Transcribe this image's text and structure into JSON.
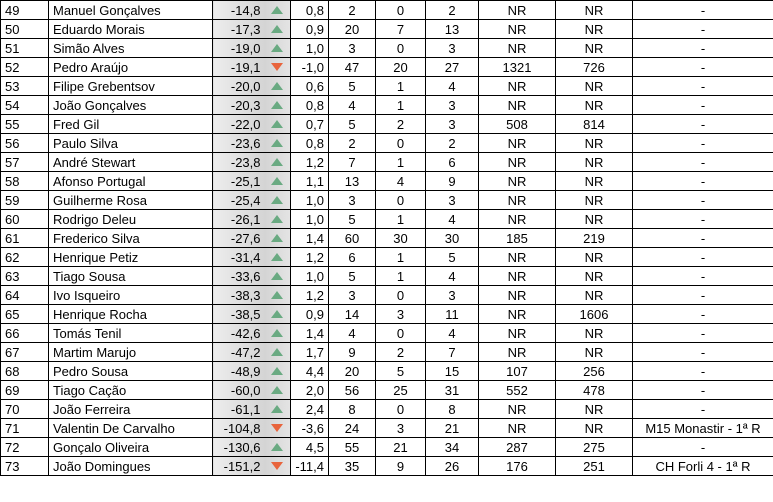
{
  "table": {
    "rows": [
      [
        "49",
        "Manuel Gonçalves",
        "-14,8",
        "0,8",
        "2",
        "0",
        "2",
        "NR",
        "NR",
        "-"
      ],
      [
        "50",
        "Eduardo Morais",
        "-17,3",
        "0,9",
        "20",
        "7",
        "13",
        "NR",
        "NR",
        "-"
      ],
      [
        "51",
        "Simão Alves",
        "-19,0",
        "1,0",
        "3",
        "0",
        "3",
        "NR",
        "NR",
        "-"
      ],
      [
        "52",
        "Pedro Araújo",
        "-19,1",
        "-1,0",
        "47",
        "20",
        "27",
        "1321",
        "726",
        "-"
      ],
      [
        "53",
        "Filipe Grebentsov",
        "-20,0",
        "0,6",
        "5",
        "1",
        "4",
        "NR",
        "NR",
        "-"
      ],
      [
        "54",
        "João Gonçalves",
        "-20,3",
        "0,8",
        "4",
        "1",
        "3",
        "NR",
        "NR",
        "-"
      ],
      [
        "55",
        "Fred Gil",
        "-22,0",
        "0,7",
        "5",
        "2",
        "3",
        "508",
        "814",
        "-"
      ],
      [
        "56",
        "Paulo Silva",
        "-23,6",
        "0,8",
        "2",
        "0",
        "2",
        "NR",
        "NR",
        "-"
      ],
      [
        "57",
        "André Stewart",
        "-23,8",
        "1,2",
        "7",
        "1",
        "6",
        "NR",
        "NR",
        "-"
      ],
      [
        "58",
        "Afonso Portugal",
        "-25,1",
        "1,1",
        "13",
        "4",
        "9",
        "NR",
        "NR",
        "-"
      ],
      [
        "59",
        "Guilherme Rosa",
        "-25,4",
        "1,0",
        "3",
        "0",
        "3",
        "NR",
        "NR",
        "-"
      ],
      [
        "60",
        "Rodrigo Deleu",
        "-26,1",
        "1,0",
        "5",
        "1",
        "4",
        "NR",
        "NR",
        "-"
      ],
      [
        "61",
        "Frederico Silva",
        "-27,6",
        "1,4",
        "60",
        "30",
        "30",
        "185",
        "219",
        "-"
      ],
      [
        "62",
        "Henrique Petiz",
        "-31,4",
        "1,2",
        "6",
        "1",
        "5",
        "NR",
        "NR",
        "-"
      ],
      [
        "63",
        "Tiago Sousa",
        "-33,6",
        "1,0",
        "5",
        "1",
        "4",
        "NR",
        "NR",
        "-"
      ],
      [
        "64",
        "Ivo Isqueiro",
        "-38,3",
        "1,2",
        "3",
        "0",
        "3",
        "NR",
        "NR",
        "-"
      ],
      [
        "65",
        "Henrique Rocha",
        "-38,5",
        "0,9",
        "14",
        "3",
        "11",
        "NR",
        "1606",
        "-"
      ],
      [
        "66",
        "Tomás Tenil",
        "-42,6",
        "1,4",
        "4",
        "0",
        "4",
        "NR",
        "NR",
        "-"
      ],
      [
        "67",
        "Martim Marujo",
        "-47,2",
        "1,7",
        "9",
        "2",
        "7",
        "NR",
        "NR",
        "-"
      ],
      [
        "68",
        "Pedro Sousa",
        "-48,9",
        "4,4",
        "20",
        "5",
        "15",
        "107",
        "256",
        "-"
      ],
      [
        "69",
        "Tiago Cação",
        "-60,0",
        "2,0",
        "56",
        "25",
        "31",
        "552",
        "478",
        "-"
      ],
      [
        "70",
        "João Ferreira",
        "-61,1",
        "2,4",
        "8",
        "0",
        "8",
        "NR",
        "NR",
        "-"
      ],
      [
        "71",
        "Valentin De Carvalho",
        "-104,8",
        "-3,6",
        "24",
        "3",
        "21",
        "NR",
        "NR",
        "M15 Monastir - 1ª R"
      ],
      [
        "72",
        "Gonçalo Oliveira",
        "-130,6",
        "4,5",
        "55",
        "21",
        "34",
        "287",
        "275",
        "-"
      ],
      [
        "73",
        "João Domingues",
        "-151,2",
        "-11,4",
        "35",
        "9",
        "26",
        "176",
        "251",
        "CH Forli 4 - 1ª R"
      ]
    ]
  }
}
